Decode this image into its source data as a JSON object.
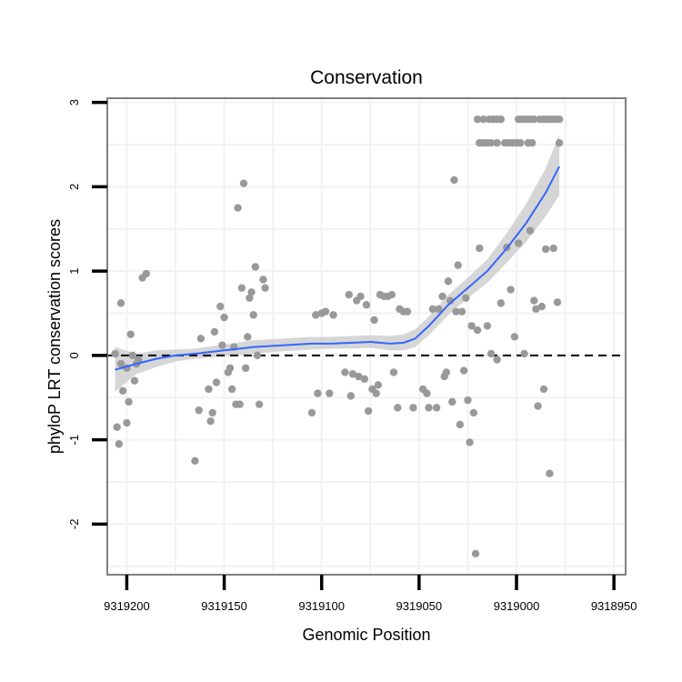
{
  "chart_data": {
    "type": "scatter",
    "title": "Conservation",
    "xlabel": "Genomic Position",
    "ylabel": "phyloP LRT conservation scores",
    "x_reversed": true,
    "xlim": [
      9319210,
      9318944
    ],
    "ylim": [
      -2.6,
      3.05
    ],
    "x_ticks": [
      9319200,
      9319150,
      9319100,
      9319050,
      9319000,
      9318950
    ],
    "x_tick_labels": [
      "9319200",
      "9319150",
      "9319100",
      "9319050",
      "9319000",
      "9318950"
    ],
    "y_ticks": [
      -2,
      -1,
      0,
      1,
      2,
      3
    ],
    "y_tick_labels": [
      "-2",
      "-1",
      "0",
      "1",
      "2",
      "3"
    ],
    "reference_line": {
      "y": 0,
      "style": "dashed"
    },
    "colors": {
      "points": "#999999",
      "smooth": "#3366ff",
      "ribbon": "#c8c8c8",
      "panel_border": "#808080",
      "grid": "#f2f2f2"
    },
    "points": [
      [
        9319205,
        -0.85
      ],
      [
        9319204,
        -1.05
      ],
      [
        9319203,
        0.62
      ],
      [
        9319202,
        -0.42
      ],
      [
        9319200,
        -0.8
      ],
      [
        9319199,
        -0.55
      ],
      [
        9319198,
        0.25
      ],
      [
        9319196,
        -0.3
      ],
      [
        9319195,
        -0.1
      ],
      [
        9319192,
        0.92
      ],
      [
        9319190,
        0.97
      ],
      [
        9319206,
        0.02
      ],
      [
        9319203,
        -0.1
      ],
      [
        9319200,
        -0.15
      ],
      [
        9319197,
        0.0
      ],
      [
        9319194,
        -0.05
      ],
      [
        9319165,
        -1.25
      ],
      [
        9319163,
        -0.65
      ],
      [
        9319162,
        0.2
      ],
      [
        9319158,
        -0.4
      ],
      [
        9319157,
        -0.78
      ],
      [
        9319156,
        -0.68
      ],
      [
        9319155,
        0.28
      ],
      [
        9319154,
        -0.32
      ],
      [
        9319152,
        0.58
      ],
      [
        9319151,
        0.12
      ],
      [
        9319150,
        0.45
      ],
      [
        9319148,
        -0.2
      ],
      [
        9319147,
        -0.15
      ],
      [
        9319146,
        -0.4
      ],
      [
        9319145,
        0.1
      ],
      [
        9319144,
        -0.58
      ],
      [
        9319143,
        1.75
      ],
      [
        9319142,
        -0.58
      ],
      [
        9319141,
        0.8
      ],
      [
        9319140,
        2.04
      ],
      [
        9319139,
        -0.15
      ],
      [
        9319138,
        0.22
      ],
      [
        9319137,
        0.68
      ],
      [
        9319136,
        0.75
      ],
      [
        9319135,
        0.48
      ],
      [
        9319134,
        1.05
      ],
      [
        9319133,
        0.0
      ],
      [
        9319132,
        -0.58
      ],
      [
        9319130,
        0.9
      ],
      [
        9319129,
        0.8
      ],
      [
        9319105,
        -0.68
      ],
      [
        9319103,
        0.48
      ],
      [
        9319102,
        -0.45
      ],
      [
        9319100,
        0.5
      ],
      [
        9319098,
        0.52
      ],
      [
        9319096,
        -0.45
      ],
      [
        9319094,
        0.48
      ],
      [
        9319088,
        -0.2
      ],
      [
        9319086,
        0.72
      ],
      [
        9319085,
        -0.48
      ],
      [
        9319084,
        -0.22
      ],
      [
        9319082,
        0.65
      ],
      [
        9319081,
        -0.25
      ],
      [
        9319080,
        0.7
      ],
      [
        9319078,
        -0.28
      ],
      [
        9319077,
        0.6
      ],
      [
        9319076,
        -0.66
      ],
      [
        9319074,
        -0.4
      ],
      [
        9319073,
        0.42
      ],
      [
        9319072,
        -0.45
      ],
      [
        9319071,
        -0.35
      ],
      [
        9319070,
        0.72
      ],
      [
        9319068,
        0.7
      ],
      [
        9319066,
        0.7
      ],
      [
        9319064,
        0.72
      ],
      [
        9319063,
        -0.2
      ],
      [
        9319061,
        -0.62
      ],
      [
        9319060,
        0.55
      ],
      [
        9319058,
        0.52
      ],
      [
        9319056,
        0.52
      ],
      [
        9319053,
        -0.62
      ],
      [
        9319048,
        -0.4
      ],
      [
        9319046,
        -0.45
      ],
      [
        9319045,
        -0.62
      ],
      [
        9319043,
        0.55
      ],
      [
        9319041,
        -0.62
      ],
      [
        9319040,
        0.55
      ],
      [
        9319038,
        0.7
      ],
      [
        9319037,
        -0.25
      ],
      [
        9319036,
        -0.2
      ],
      [
        9319035,
        0.88
      ],
      [
        9319034,
        0.65
      ],
      [
        9319033,
        -0.55
      ],
      [
        9319032,
        2.08
      ],
      [
        9319031,
        0.52
      ],
      [
        9319030,
        1.07
      ],
      [
        9319029,
        -0.82
      ],
      [
        9319028,
        0.52
      ],
      [
        9319027,
        -0.18
      ],
      [
        9319026,
        0.68
      ],
      [
        9319025,
        -0.53
      ],
      [
        9319024,
        -1.03
      ],
      [
        9319023,
        0.35
      ],
      [
        9319022,
        -0.68
      ],
      [
        9319021,
        -2.35
      ],
      [
        9319020,
        0.3
      ],
      [
        9319019,
        1.27
      ],
      [
        9319015,
        0.35
      ],
      [
        9319013,
        0.02
      ],
      [
        9319010,
        -0.05
      ],
      [
        9319008,
        0.62
      ],
      [
        9319005,
        1.28
      ],
      [
        9319003,
        0.78
      ],
      [
        9319001,
        0.22
      ],
      [
        9318999,
        1.33
      ],
      [
        9318996,
        0.02
      ],
      [
        9318993,
        1.48
      ],
      [
        9318991,
        0.65
      ],
      [
        9318990,
        0.55
      ],
      [
        9318989,
        -0.6
      ],
      [
        9318987,
        0.58
      ],
      [
        9318986,
        -0.4
      ],
      [
        9318985,
        1.26
      ],
      [
        9318983,
        -1.4
      ],
      [
        9318981,
        1.27
      ],
      [
        9318979,
        0.63
      ],
      [
        9318978,
        2.52
      ],
      [
        9319020,
        2.8
      ],
      [
        9319017,
        2.8
      ],
      [
        9319014,
        2.8
      ],
      [
        9319012,
        2.8
      ],
      [
        9319010,
        2.8
      ],
      [
        9319008,
        2.8
      ],
      [
        9318999,
        2.8
      ],
      [
        9318997,
        2.8
      ],
      [
        9318995,
        2.8
      ],
      [
        9318993,
        2.8
      ],
      [
        9318991,
        2.8
      ],
      [
        9318988,
        2.8
      ],
      [
        9318986,
        2.8
      ],
      [
        9318984,
        2.8
      ],
      [
        9318982,
        2.8
      ],
      [
        9318980,
        2.8
      ],
      [
        9318978,
        2.8
      ],
      [
        9319019,
        2.52
      ],
      [
        9319017,
        2.52
      ],
      [
        9319015,
        2.52
      ],
      [
        9319013,
        2.52
      ],
      [
        9319010,
        2.52
      ],
      [
        9319006,
        2.52
      ],
      [
        9319004,
        2.52
      ],
      [
        9319002,
        2.52
      ],
      [
        9319000,
        2.52
      ],
      [
        9318998,
        2.52
      ],
      [
        9318994,
        2.52
      ],
      [
        9318992,
        2.52
      ]
    ],
    "smooth_line": {
      "x": [
        9319206,
        9319195,
        9319185,
        9319175,
        9319165,
        9319150,
        9319135,
        9319120,
        9319105,
        9319095,
        9319085,
        9319075,
        9319065,
        9319058,
        9319052,
        9319045,
        9319035,
        9319025,
        9319015,
        9319005,
        9318995,
        9318985,
        9318978
      ],
      "y": [
        -0.17,
        -0.1,
        -0.04,
        0.0,
        0.02,
        0.06,
        0.1,
        0.12,
        0.14,
        0.14,
        0.15,
        0.16,
        0.14,
        0.15,
        0.2,
        0.35,
        0.6,
        0.8,
        1.0,
        1.27,
        1.57,
        1.93,
        2.24
      ],
      "ribbon_lower": [
        -0.43,
        -0.22,
        -0.14,
        -0.07,
        -0.04,
        -0.01,
        0.02,
        0.05,
        0.07,
        0.08,
        0.08,
        0.09,
        0.06,
        0.06,
        0.1,
        0.24,
        0.48,
        0.68,
        0.86,
        1.1,
        1.35,
        1.65,
        1.9
      ],
      "ribbon_upper": [
        0.1,
        0.02,
        0.06,
        0.07,
        0.08,
        0.13,
        0.18,
        0.2,
        0.22,
        0.22,
        0.23,
        0.24,
        0.23,
        0.25,
        0.31,
        0.46,
        0.72,
        0.92,
        1.14,
        1.45,
        1.8,
        2.22,
        2.62
      ]
    }
  }
}
